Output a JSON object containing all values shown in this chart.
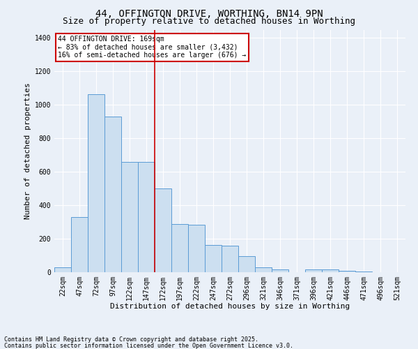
{
  "title": "44, OFFINGTON DRIVE, WORTHING, BN14 9PN",
  "subtitle": "Size of property relative to detached houses in Worthing",
  "xlabel": "Distribution of detached houses by size in Worthing",
  "ylabel": "Number of detached properties",
  "footnote1": "Contains HM Land Registry data © Crown copyright and database right 2025.",
  "footnote2": "Contains public sector information licensed under the Open Government Licence v3.0.",
  "categories": [
    "22sqm",
    "47sqm",
    "72sqm",
    "97sqm",
    "122sqm",
    "147sqm",
    "172sqm",
    "197sqm",
    "222sqm",
    "247sqm",
    "272sqm",
    "296sqm",
    "321sqm",
    "346sqm",
    "371sqm",
    "396sqm",
    "421sqm",
    "446sqm",
    "471sqm",
    "496sqm",
    "521sqm"
  ],
  "values": [
    30,
    330,
    1065,
    930,
    660,
    660,
    500,
    290,
    285,
    163,
    160,
    95,
    30,
    15,
    0,
    15,
    15,
    10,
    5,
    2,
    0
  ],
  "bar_color": "#ccdff0",
  "bar_edge_color": "#5b9bd5",
  "bar_linewidth": 0.7,
  "vline_x_idx": 6,
  "vline_color": "#cc0000",
  "vline_linewidth": 1.2,
  "annotation_title": "44 OFFINGTON DRIVE: 169sqm",
  "annotation_line1": "← 83% of detached houses are smaller (3,432)",
  "annotation_line2": "16% of semi-detached houses are larger (676) →",
  "annotation_box_color": "#cc0000",
  "ylim": [
    0,
    1450
  ],
  "yticks": [
    0,
    200,
    400,
    600,
    800,
    1000,
    1200,
    1400
  ],
  "bg_color": "#eaf0f8",
  "plot_bg_color": "#eaf0f8",
  "grid_color": "#ffffff",
  "title_fontsize": 10,
  "subtitle_fontsize": 9,
  "axis_label_fontsize": 8,
  "tick_fontsize": 7,
  "annot_fontsize": 7
}
